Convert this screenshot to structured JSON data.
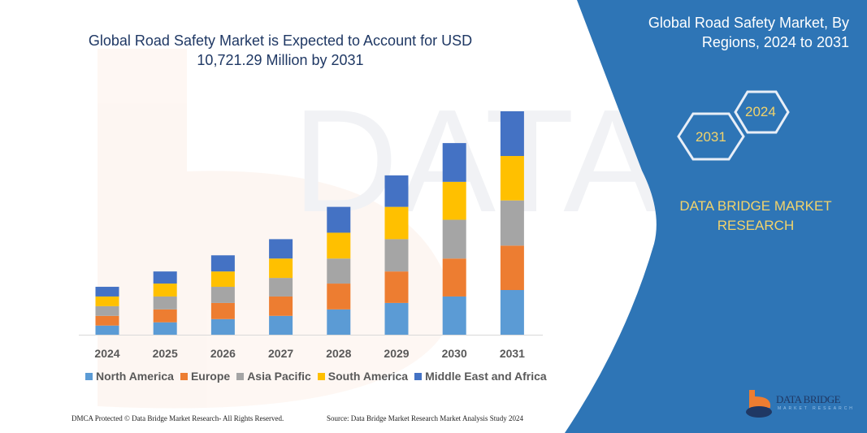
{
  "title": "Global Road Safety Market is Expected to Account for USD 10,721.29 Million by 2031",
  "side_panel": {
    "title": "Global Road Safety Market, By Regions, 2024 to 2031",
    "hex_years": [
      "2024",
      "2031"
    ],
    "brand": "DATA BRIDGE MARKET RESEARCH",
    "logo_text": "DATA BRIDGE",
    "logo_subtext": "MARKET RESEARCH",
    "panel_color": "#2e75b6",
    "accent_text_color": "#f2d36b"
  },
  "footer": {
    "left": "DMCA Protected © Data Bridge Market Research-  All Rights Reserved.",
    "right": "Source: Data Bridge Market Research  Market Analysis Study 2024"
  },
  "chart_data": {
    "type": "bar",
    "stacked": true,
    "categories": [
      "2024",
      "2025",
      "2026",
      "2027",
      "2028",
      "2029",
      "2030",
      "2031"
    ],
    "series": [
      {
        "name": "North America",
        "color": "#5b9bd5",
        "values": [
          439,
          594,
          749,
          904,
          1214,
          1524,
          1834,
          2144
        ]
      },
      {
        "name": "Europe",
        "color": "#ed7d31",
        "values": [
          465,
          620,
          775,
          930,
          1240,
          1511,
          1821,
          2131
        ]
      },
      {
        "name": "Asia Pacific",
        "color": "#a5a5a5",
        "values": [
          465,
          620,
          775,
          891,
          1201,
          1550,
          1860,
          2170
        ]
      },
      {
        "name": "South America",
        "color": "#ffc000",
        "values": [
          465,
          620,
          736,
          930,
          1240,
          1550,
          1821,
          2131
        ]
      },
      {
        "name": "Middle East and Africa",
        "color": "#4472c4",
        "values": [
          465,
          581,
          775,
          930,
          1240,
          1511,
          1860,
          2145
        ]
      }
    ],
    "yaxis_visible": false,
    "grid": false,
    "legend_position": "bottom"
  }
}
